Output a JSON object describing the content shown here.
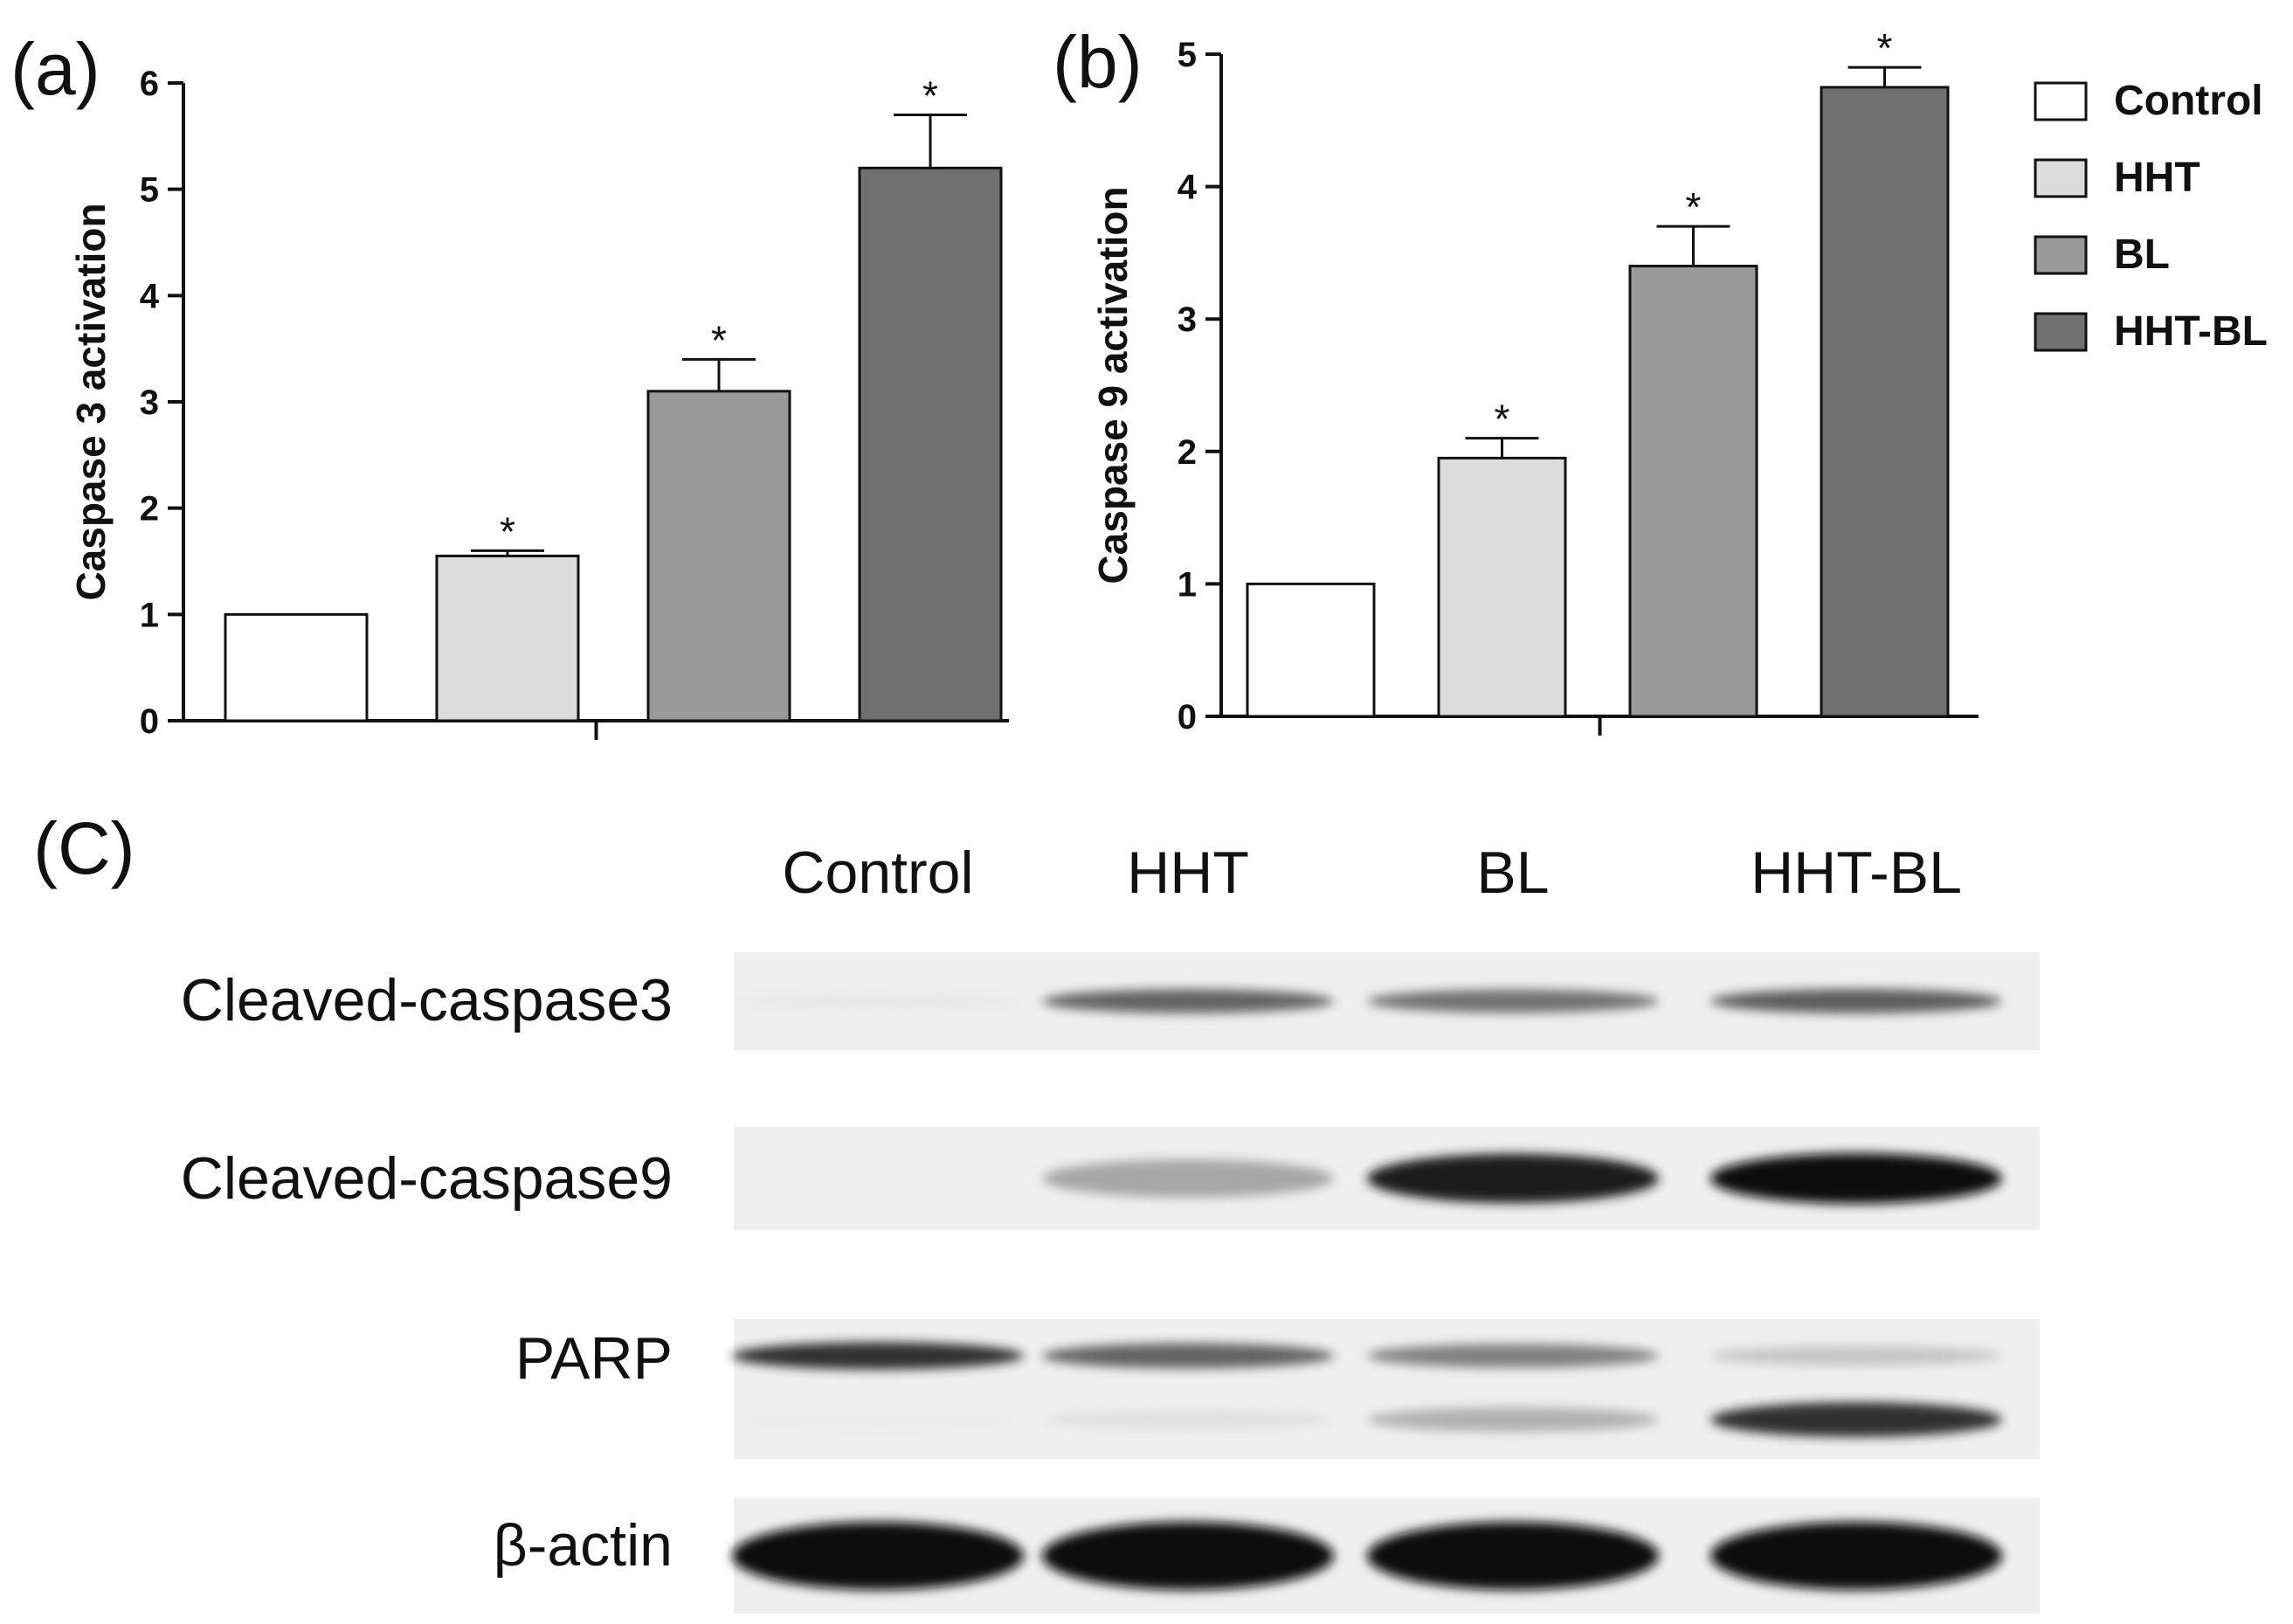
{
  "panels": {
    "a": "(a)",
    "b": "(b)",
    "c": "(C)"
  },
  "colors": {
    "Control": "#ffffff",
    "HHT": "#dcdcdc",
    "BL": "#999999",
    "HHT-BL": "#707070",
    "axis": "#111111"
  },
  "chart_data": [
    {
      "type": "bar",
      "panel": "a",
      "ylabel": "Caspase 3 activation",
      "xlabel": "",
      "categories": [
        "Control",
        "HHT",
        "BL",
        "HHT-BL"
      ],
      "values": [
        1.0,
        1.55,
        3.1,
        5.2
      ],
      "errors": [
        0.0,
        0.05,
        0.3,
        0.5
      ],
      "significant": [
        false,
        true,
        true,
        true
      ],
      "significance_marker": "*",
      "ylim": [
        0,
        6
      ],
      "yticks": [
        "0",
        "1",
        "2",
        "3",
        "4",
        "5",
        "6"
      ],
      "grid": false
    },
    {
      "type": "bar",
      "panel": "b",
      "ylabel": "Caspase 9 activation",
      "xlabel": "",
      "categories": [
        "Control",
        "HHT",
        "BL",
        "HHT-BL"
      ],
      "values": [
        1.0,
        1.95,
        3.4,
        4.75
      ],
      "errors": [
        0.0,
        0.15,
        0.3,
        0.15
      ],
      "significant": [
        false,
        true,
        true,
        true
      ],
      "significance_marker": "*",
      "ylim": [
        0,
        5
      ],
      "yticks": [
        "0",
        "1",
        "2",
        "3",
        "4",
        "5"
      ],
      "grid": false
    }
  ],
  "legend": {
    "placement": "right",
    "entries": [
      "Control",
      "HHT",
      "BL",
      "HHT-BL"
    ]
  },
  "blot": {
    "lanes": [
      "Control",
      "HHT",
      "BL",
      "HHT-BL"
    ],
    "rows": [
      {
        "label": "Cleaved-caspase3",
        "intensity": [
          0.04,
          0.7,
          0.65,
          0.72
        ]
      },
      {
        "label": "Cleaved-caspase9",
        "intensity": [
          0.0,
          0.45,
          0.95,
          1.0
        ]
      },
      {
        "label": "PARP",
        "intensity_upper": [
          0.85,
          0.7,
          0.6,
          0.3
        ],
        "intensity_lower": [
          0.02,
          0.12,
          0.4,
          0.85
        ]
      },
      {
        "label": "β-actin",
        "intensity": [
          1.0,
          1.0,
          1.0,
          1.0
        ]
      }
    ]
  }
}
